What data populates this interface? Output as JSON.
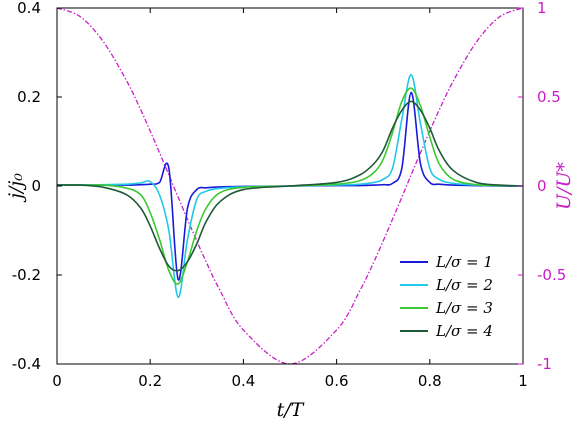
{
  "chart_data": {
    "type": "line",
    "xlabel": "t/T",
    "ylabel_left": "j/j₀",
    "ylabel_right": "U/U*",
    "xlim": [
      0,
      1
    ],
    "ylim_left": [
      -0.4,
      0.4
    ],
    "ylim_right": [
      -1,
      1
    ],
    "grid": false,
    "legend_position": "lower-right",
    "x_ticks": [
      "0",
      "0.2",
      "0.4",
      "0.6",
      "0.8",
      "1"
    ],
    "y_ticks_left": [
      "-0.4",
      "-0.2",
      "0",
      "0.2",
      "0.4"
    ],
    "y_ticks_right": [
      "-1",
      "-0.5",
      "0",
      "0.5",
      "1"
    ],
    "x": [
      0,
      0.05,
      0.1,
      0.15,
      0.18,
      0.2,
      0.22,
      0.24,
      0.26,
      0.28,
      0.3,
      0.32,
      0.35,
      0.4,
      0.5,
      0.6,
      0.65,
      0.68,
      0.7,
      0.72,
      0.74,
      0.76,
      0.78,
      0.8,
      0.82,
      0.85,
      0.9,
      0.95,
      1
    ],
    "series": [
      {
        "name": "L/σ = 1",
        "color": "#1a1adb",
        "axis": "left",
        "values": [
          0.002,
          0.002,
          0.002,
          0.002,
          0.003,
          0.004,
          0.008,
          0.04,
          -0.21,
          -0.05,
          -0.008,
          -0.004,
          -0.002,
          -0.001,
          0.0,
          0.001,
          0.001,
          0.002,
          0.003,
          0.006,
          0.04,
          0.21,
          0.05,
          0.008,
          0.004,
          0.002,
          0.001,
          0.0,
          0.0
        ]
      },
      {
        "name": "L/σ = 2",
        "color": "#22c8e8",
        "axis": "left",
        "values": [
          0.002,
          0.002,
          0.003,
          0.004,
          0.007,
          0.01,
          -0.02,
          -0.1,
          -0.25,
          -0.12,
          -0.03,
          -0.012,
          -0.005,
          -0.002,
          0.0,
          0.002,
          0.004,
          0.008,
          0.015,
          0.04,
          0.15,
          0.25,
          0.14,
          0.04,
          0.015,
          0.006,
          0.002,
          0.001,
          0.0
        ]
      },
      {
        "name": "L/σ = 3",
        "color": "#3cc832",
        "axis": "left",
        "values": [
          0.002,
          0.002,
          0.002,
          -0.005,
          -0.02,
          -0.06,
          -0.12,
          -0.19,
          -0.22,
          -0.17,
          -0.1,
          -0.05,
          -0.015,
          -0.003,
          0.0,
          0.004,
          0.012,
          0.03,
          0.06,
          0.12,
          0.19,
          0.22,
          0.18,
          0.11,
          0.05,
          0.015,
          0.003,
          0.001,
          0.0
        ]
      },
      {
        "name": "L/σ = 4",
        "color": "#1e5a37",
        "axis": "left",
        "values": [
          0.002,
          0.002,
          -0.003,
          -0.02,
          -0.05,
          -0.09,
          -0.14,
          -0.18,
          -0.19,
          -0.17,
          -0.13,
          -0.08,
          -0.035,
          -0.008,
          0.0,
          0.008,
          0.025,
          0.05,
          0.08,
          0.13,
          0.17,
          0.19,
          0.17,
          0.13,
          0.08,
          0.035,
          0.008,
          0.002,
          0.0
        ]
      },
      {
        "name": "U/U*",
        "color": "#c81ec8",
        "axis": "right",
        "style": "dash-dot",
        "values": [
          1.0,
          0.951,
          0.809,
          0.588,
          0.426,
          0.309,
          0.187,
          0.063,
          -0.063,
          -0.187,
          -0.309,
          -0.426,
          -0.588,
          -0.809,
          -1.0,
          -0.809,
          -0.588,
          -0.426,
          -0.309,
          -0.187,
          -0.063,
          0.063,
          0.187,
          0.309,
          0.426,
          0.588,
          0.809,
          0.951,
          1.0
        ]
      }
    ],
    "legend": [
      "L/σ = 1",
      "L/σ = 2",
      "L/σ = 3",
      "L/σ = 4"
    ]
  }
}
